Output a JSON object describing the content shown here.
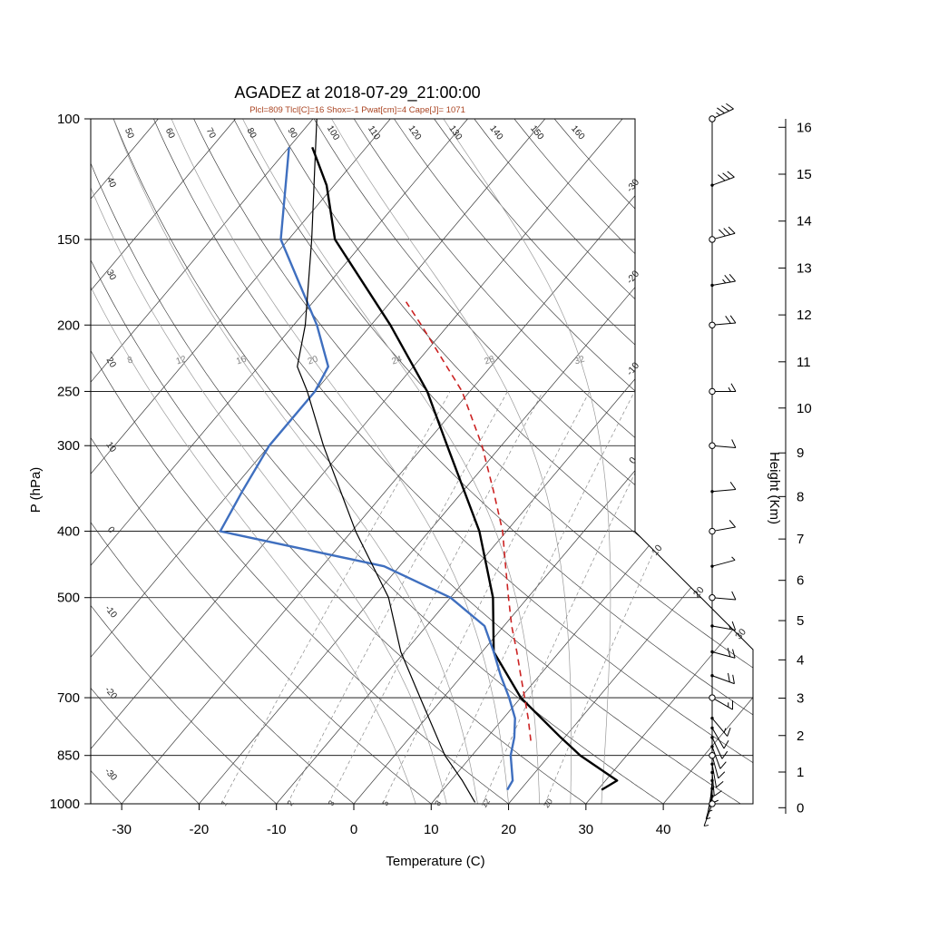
{
  "title": "AGADEZ at 2018-07-29_21:00:00",
  "subtitle": "Plcl=809 Tlcl[C]=16 Shox=-1 Pwat[cm]=4 Cape[J]= 1071",
  "colors": {
    "temperature": "#000000",
    "dewpoint": "#3f6fbf",
    "wet_bulb": "#000000",
    "parcel": "#cc2222",
    "subtitle": "#aa4422",
    "isotherm": "#3a3a3a",
    "dry_adiabat": "#3a3a3a",
    "moist_adiabat": "#9a9a9a",
    "mixing_ratio": "#8a8a8a",
    "pressure_line": "#000000"
  },
  "axes": {
    "pressure": {
      "label": "P (hPa)",
      "ticks": [
        100,
        150,
        200,
        250,
        300,
        400,
        500,
        700,
        850,
        1000
      ]
    },
    "temperature": {
      "label": "Temperature (C)",
      "ticks": [
        -30,
        -20,
        -10,
        0,
        10,
        20,
        30,
        40
      ]
    },
    "height": {
      "label": "Height (Km)",
      "ticks": [
        0,
        1,
        2,
        3,
        4,
        5,
        6,
        7,
        8,
        9,
        10,
        11,
        12,
        13,
        14,
        15,
        16
      ]
    }
  },
  "background": {
    "isotherm_range": {
      "min": -110,
      "max": 40,
      "step": 10
    },
    "isotherm_edge_labels": [
      -30,
      -20,
      -10,
      0,
      10,
      20,
      30
    ],
    "dry_adiabat_range": {
      "min": -30,
      "max": 160,
      "step": 10
    },
    "moist_adiabats": [
      8,
      12,
      16,
      20,
      24,
      28,
      32
    ],
    "mixing_ratios": [
      1,
      2,
      3,
      5,
      8,
      12,
      20
    ]
  },
  "chart_data": {
    "type": "line",
    "chart": "skew-t log-p atmospheric sounding",
    "station": "AGADEZ",
    "time": "2018-07-29_21:00:00",
    "x": "temperature_C",
    "y": "pressure_hPa",
    "xlabel": "Temperature (C)",
    "ylabel": "P (hPa)",
    "xlim": [
      -30,
      40
    ],
    "ylim": [
      1000,
      100
    ],
    "parameters": {
      "Plcl": 809,
      "Tlcl_C": 16,
      "Shox": -1,
      "Pwat_cm": 4,
      "Cape_J": 1071
    },
    "series": [
      {
        "name": "temperature",
        "color": "#000000",
        "style": "solid",
        "width": 2.4,
        "points": [
          [
            954,
            30.5
          ],
          [
            925,
            31.5
          ],
          [
            850,
            24
          ],
          [
            800,
            19.5
          ],
          [
            700,
            10
          ],
          [
            600,
            1.5
          ],
          [
            500,
            -4.5
          ],
          [
            400,
            -13.5
          ],
          [
            300,
            -27
          ],
          [
            250,
            -35.5
          ],
          [
            200,
            -47.5
          ],
          [
            150,
            -64
          ],
          [
            125,
            -71
          ],
          [
            110,
            -77
          ]
        ]
      },
      {
        "name": "dewpoint",
        "color": "#3f6fbf",
        "style": "solid",
        "width": 2.4,
        "points": [
          [
            954,
            18.3
          ],
          [
            925,
            18
          ],
          [
            850,
            15
          ],
          [
            800,
            13.5
          ],
          [
            750,
            11.5
          ],
          [
            700,
            8.5
          ],
          [
            650,
            5
          ],
          [
            600,
            1.5
          ],
          [
            550,
            -2.5
          ],
          [
            500,
            -10
          ],
          [
            450,
            -22
          ],
          [
            400,
            -47
          ],
          [
            350,
            -48.5
          ],
          [
            300,
            -50
          ],
          [
            250,
            -50
          ],
          [
            230,
            -51
          ],
          [
            200,
            -57
          ],
          [
            150,
            -71
          ],
          [
            110,
            -80
          ]
        ]
      },
      {
        "name": "wet_bulb",
        "color": "#000000",
        "style": "solid",
        "width": 1.2,
        "points": [
          [
            995,
            15.5
          ],
          [
            925,
            11.5
          ],
          [
            850,
            6.5
          ],
          [
            700,
            -3
          ],
          [
            600,
            -10.5
          ],
          [
            500,
            -18
          ],
          [
            400,
            -29.5
          ],
          [
            300,
            -43
          ],
          [
            250,
            -51
          ],
          [
            230,
            -55
          ],
          [
            200,
            -58.5
          ],
          [
            150,
            -67
          ],
          [
            100,
            -79.5
          ]
        ]
      },
      {
        "name": "parcel",
        "color": "#cc2222",
        "style": "dashed",
        "width": 1.6,
        "points": [
          [
            809,
            16
          ],
          [
            750,
            13.2
          ],
          [
            700,
            10.5
          ],
          [
            650,
            7.6
          ],
          [
            600,
            4.5
          ],
          [
            550,
            1
          ],
          [
            500,
            -2.5
          ],
          [
            450,
            -6.3
          ],
          [
            400,
            -10.5
          ],
          [
            350,
            -16
          ],
          [
            300,
            -22.5
          ],
          [
            250,
            -31
          ],
          [
            200,
            -43.5
          ],
          [
            185,
            -48
          ]
        ]
      }
    ]
  },
  "wind_barbs": {
    "units": "kt",
    "circle_levels": [
      100,
      150,
      200,
      250,
      300,
      400,
      500,
      700,
      850,
      1000
    ],
    "levels": [
      [
        100,
        65,
        35
      ],
      [
        125,
        70,
        30
      ],
      [
        150,
        75,
        30
      ],
      [
        175,
        80,
        25
      ],
      [
        200,
        85,
        20
      ],
      [
        250,
        90,
        15
      ],
      [
        300,
        95,
        10
      ],
      [
        350,
        85,
        10
      ],
      [
        400,
        80,
        10
      ],
      [
        450,
        75,
        5
      ],
      [
        500,
        95,
        10
      ],
      [
        550,
        100,
        15
      ],
      [
        600,
        105,
        20
      ],
      [
        650,
        110,
        20
      ],
      [
        700,
        120,
        15
      ],
      [
        750,
        140,
        15
      ],
      [
        775,
        150,
        10
      ],
      [
        800,
        155,
        10
      ],
      [
        825,
        160,
        10
      ],
      [
        850,
        165,
        10
      ],
      [
        875,
        170,
        10
      ],
      [
        900,
        175,
        10
      ],
      [
        925,
        185,
        10
      ],
      [
        950,
        190,
        5
      ],
      [
        975,
        195,
        5
      ],
      [
        1000,
        200,
        5
      ]
    ]
  }
}
